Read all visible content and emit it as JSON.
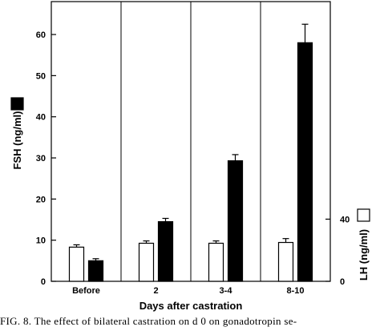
{
  "caption": "FIG. 8. The effect of bilateral castration on d 0 on gonadotropin se-",
  "chart_data": {
    "type": "bar",
    "categories": [
      "Before",
      "2",
      "3-4",
      "8-10"
    ],
    "xlabel": "Days after castration",
    "ylabel_left": "FSH (ng/ml)",
    "ylabel_right": "LH (ng/ml)",
    "y_left": {
      "lim": [
        0,
        68
      ],
      "ticks": [
        0,
        10,
        20,
        30,
        40,
        50,
        60
      ],
      "tick_labels": [
        "0",
        "10",
        "20",
        "30",
        "40",
        "50",
        "60"
      ]
    },
    "y_right": {
      "lim": [
        0,
        180
      ],
      "ticks": [
        0,
        40
      ],
      "tick_labels": [
        "0",
        "40"
      ]
    },
    "series": [
      {
        "name": "LH (ng/ml)",
        "axis": "right",
        "fill": "#ffffff",
        "values": [
          22,
          24.5,
          24.5,
          25
        ],
        "errors": [
          1.5,
          1.5,
          1.5,
          2.5
        ]
      },
      {
        "name": "FSH (ng/ml)",
        "axis": "left",
        "fill": "#000000",
        "values": [
          5,
          14.5,
          29.3,
          58
        ],
        "errors": [
          0.5,
          0.8,
          1.5,
          4.5
        ]
      }
    ],
    "group_dividers": true,
    "grid": false,
    "legend": "along the y-axis labels"
  }
}
